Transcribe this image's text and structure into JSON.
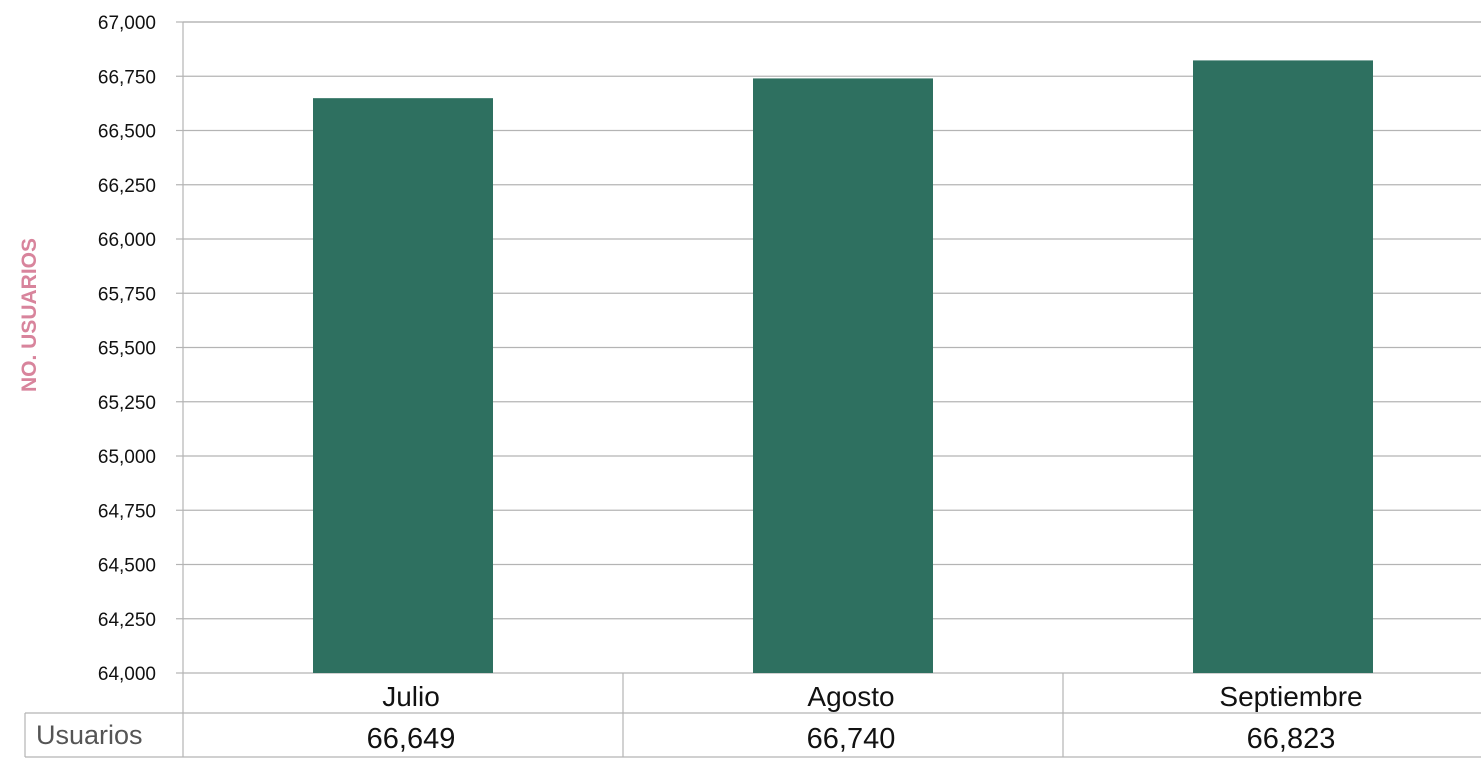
{
  "chart_data": {
    "type": "bar",
    "categories": [
      "Julio",
      "Agosto",
      "Septiembre"
    ],
    "values": [
      66649,
      66740,
      66823
    ],
    "value_labels": [
      "66,649",
      "66,740",
      "66,823"
    ],
    "series": [
      {
        "name": "Usuarios",
        "values": [
          66649,
          66740,
          66823
        ]
      }
    ],
    "title": "",
    "xlabel": "",
    "ylabel": "NO. USUARIOS",
    "ylim": [
      64000,
      67000
    ],
    "yticks": [
      64000,
      64250,
      64500,
      64750,
      65000,
      65250,
      65500,
      65750,
      66000,
      66250,
      66500,
      66750,
      67000
    ],
    "ytick_labels": [
      "64,000",
      "64,250",
      "64,500",
      "64,750",
      "65,000",
      "65,250",
      "65,500",
      "65,750",
      "66,000",
      "66,250",
      "66,500",
      "66,750",
      "67,000"
    ],
    "grid": true,
    "legend": "none",
    "data_table": true,
    "table_row_label": "Usuarios",
    "colors": {
      "bar": "#2e7060",
      "ylabel": "#d8849c",
      "grid": "#b4b4b4",
      "text": "#111111",
      "table_row_label": "#555555"
    }
  }
}
